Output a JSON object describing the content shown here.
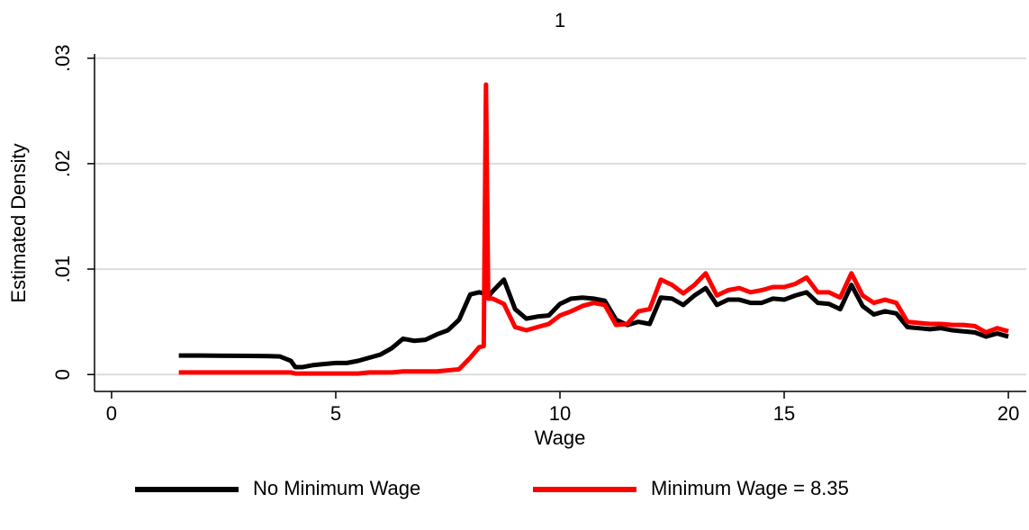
{
  "chart_data": {
    "type": "line",
    "title": "1",
    "x_label": "Wage",
    "y_label": "Estimated Density",
    "x": [
      1.5,
      2,
      2.5,
      3,
      3.5,
      3.75,
      4,
      4.1,
      4.25,
      4.5,
      4.75,
      5,
      5.25,
      5.5,
      5.75,
      6,
      6.25,
      6.5,
      6.75,
      7,
      7.25,
      7.5,
      7.75,
      8,
      8.2,
      8.3,
      8.35,
      8.4,
      8.5,
      8.75,
      9,
      9.25,
      9.5,
      9.75,
      10,
      10.25,
      10.5,
      10.75,
      11,
      11.25,
      11.5,
      11.75,
      12,
      12.25,
      12.5,
      12.75,
      13,
      13.25,
      13.5,
      13.75,
      14,
      14.25,
      14.5,
      14.75,
      15,
      15.25,
      15.5,
      15.75,
      16,
      16.25,
      16.5,
      16.75,
      17,
      17.25,
      17.5,
      17.75,
      18,
      18.25,
      18.5,
      18.75,
      19,
      19.25,
      19.5,
      19.75,
      20
    ],
    "series": [
      {
        "name": "No Minimum Wage",
        "color": "#000000",
        "values": [
          0.0018,
          0.0018,
          0.00178,
          0.00177,
          0.00175,
          0.00172,
          0.0013,
          0.0007,
          0.0007,
          0.0009,
          0.001,
          0.0011,
          0.0011,
          0.0013,
          0.0016,
          0.0019,
          0.0025,
          0.0034,
          0.0032,
          0.0033,
          0.0038,
          0.0042,
          0.0052,
          0.0076,
          0.0078,
          0.0077,
          0.0078,
          0.0074,
          0.0079,
          0.009,
          0.0062,
          0.0053,
          0.0055,
          0.0056,
          0.0067,
          0.0072,
          0.0073,
          0.0072,
          0.007,
          0.0052,
          0.0047,
          0.005,
          0.0048,
          0.0073,
          0.0072,
          0.0066,
          0.0075,
          0.0082,
          0.0066,
          0.0071,
          0.0071,
          0.0068,
          0.0068,
          0.0072,
          0.0071,
          0.0075,
          0.0078,
          0.0068,
          0.0067,
          0.0062,
          0.0085,
          0.0065,
          0.0057,
          0.006,
          0.0058,
          0.0045,
          0.0044,
          0.0043,
          0.0044,
          0.0042,
          0.0041,
          0.004,
          0.0036,
          0.0039,
          0.0036
        ]
      },
      {
        "name": "Minimum Wage = 8.35",
        "color": "#ff0000",
        "values": [
          0.0002,
          0.0002,
          0.0002,
          0.0002,
          0.0002,
          0.0002,
          0.0002,
          0.0001,
          0.0001,
          0.0001,
          0.0001,
          0.0001,
          0.0001,
          0.0001,
          0.0002,
          0.0002,
          0.0002,
          0.0003,
          0.0003,
          0.0003,
          0.0003,
          0.0004,
          0.0005,
          0.0016,
          0.0026,
          0.0027,
          0.0275,
          0.0072,
          0.0072,
          0.0067,
          0.0045,
          0.0042,
          0.0045,
          0.0048,
          0.0056,
          0.006,
          0.0065,
          0.0068,
          0.0066,
          0.0047,
          0.0048,
          0.006,
          0.0062,
          0.009,
          0.0085,
          0.0077,
          0.0085,
          0.0096,
          0.0075,
          0.008,
          0.0082,
          0.0078,
          0.008,
          0.0083,
          0.0083,
          0.0086,
          0.0092,
          0.0078,
          0.0078,
          0.0073,
          0.0096,
          0.0075,
          0.0068,
          0.0071,
          0.0068,
          0.005,
          0.0049,
          0.0048,
          0.0048,
          0.0047,
          0.0047,
          0.0046,
          0.004,
          0.0044,
          0.0041
        ]
      }
    ],
    "xlim": [
      -0.38,
      20.4
    ],
    "xticks": [
      0,
      5,
      10,
      15,
      20
    ],
    "ylim": [
      -0.0016,
      0.0304
    ],
    "yticks": [
      {
        "value": 0,
        "label": "0"
      },
      {
        "value": 0.01,
        "label": ".01"
      },
      {
        "value": 0.02,
        "label": ".02"
      },
      {
        "value": 0.03,
        "label": ".03"
      }
    ],
    "grid": true,
    "legend": "bottom"
  }
}
